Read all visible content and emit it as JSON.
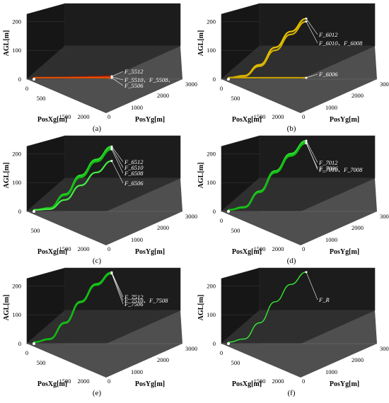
{
  "figure": {
    "panels": [
      {
        "id": "a",
        "caption": "(a)",
        "labels": [
          "F_5512",
          "F_5510、F_5508、",
          "F_5506"
        ]
      },
      {
        "id": "b",
        "caption": "(b)",
        "labels": [
          "F_6012",
          "F_6010、F_6008",
          "F_6006"
        ]
      },
      {
        "id": "c",
        "caption": "(c)",
        "labels": [
          "F_6512",
          "F_6510",
          "F_6508",
          "F_6506"
        ]
      },
      {
        "id": "d",
        "caption": "(d)",
        "labels": [
          "F_7012",
          "F_7010、F_7008",
          "F_7006"
        ]
      },
      {
        "id": "e",
        "caption": "(e)",
        "labels": [
          "F_7510、F_7508",
          "F_7512",
          "F_7506"
        ]
      },
      {
        "id": "f",
        "caption": "(f)",
        "labels": [
          "F_R"
        ]
      }
    ]
  },
  "chart_data": [
    {
      "type": "line",
      "panel": "a",
      "zlabel": "AGL[m]",
      "xlabel": "PosXg[m]",
      "ylabel": "PosYg[m]",
      "z_ticks": [
        "0",
        "100",
        "200"
      ],
      "x_ticks": [
        "0",
        "500",
        "1500",
        "2000"
      ],
      "y_ticks": [
        "0",
        "1000",
        "2000",
        "3000"
      ],
      "zlim": [
        0,
        250
      ],
      "xlim": [
        0,
        2000
      ],
      "ylim": [
        0,
        3000
      ],
      "colors": {
        "green": "#22cc22",
        "yellow": "#e8c000",
        "red": "#cc2200",
        "background": "#1a1a1a"
      },
      "series": [
        {
          "name": "F_5512",
          "x": [
            0,
            400,
            800,
            1200,
            1600,
            2000
          ],
          "y": [
            0,
            600,
            1200,
            1800,
            2400,
            3000
          ],
          "z": [
            5,
            5,
            6,
            7,
            8,
            10
          ]
        },
        {
          "name": "F_5510、F_5508、",
          "x": [
            0,
            400,
            800,
            1200,
            1600,
            2000
          ],
          "y": [
            0,
            600,
            1200,
            1800,
            2400,
            3000
          ],
          "z": [
            5,
            5,
            5,
            6,
            7,
            8
          ]
        },
        {
          "name": "F_5506",
          "x": [
            0,
            400,
            800,
            1200,
            1600,
            2000
          ],
          "y": [
            0,
            600,
            1200,
            1800,
            2400,
            3000
          ],
          "z": [
            5,
            5,
            5,
            5,
            5,
            5
          ]
        }
      ]
    },
    {
      "type": "line",
      "panel": "b",
      "zlabel": "AGL[m]",
      "xlabel": "PosXg[m]",
      "ylabel": "PosYg[m]",
      "z_ticks": [
        "0",
        "100",
        "200"
      ],
      "x_ticks": [
        "0",
        "500",
        "1500",
        "2000"
      ],
      "y_ticks": [
        "0",
        "1000",
        "2000",
        "3000"
      ],
      "zlim": [
        0,
        250
      ],
      "xlim": [
        0,
        2000
      ],
      "ylim": [
        0,
        3000
      ],
      "series": [
        {
          "name": "F_6012",
          "x": [
            0,
            400,
            800,
            1200,
            1600,
            2000
          ],
          "y": [
            0,
            600,
            1200,
            1800,
            2400,
            3000
          ],
          "z": [
            5,
            12,
            50,
            110,
            165,
            210
          ]
        },
        {
          "name": "F_6010、F_6008",
          "x": [
            0,
            400,
            800,
            1200,
            1600,
            2000
          ],
          "y": [
            0,
            600,
            1200,
            1800,
            2400,
            3000
          ],
          "z": [
            5,
            10,
            45,
            100,
            155,
            200
          ]
        },
        {
          "name": "F_6006",
          "x": [
            0,
            400,
            800,
            1200,
            1600,
            2000
          ],
          "y": [
            0,
            600,
            1200,
            1800,
            2400,
            3000
          ],
          "z": [
            5,
            5,
            5,
            5,
            5,
            5
          ]
        }
      ]
    },
    {
      "type": "line",
      "panel": "c",
      "zlabel": "AGL[m]",
      "xlabel": "PosXg[m]",
      "ylabel": "PosYg[m]",
      "z_ticks": [
        "0",
        "100",
        "200"
      ],
      "x_ticks": [
        "500",
        "1500",
        "2000"
      ],
      "y_ticks": [
        "0",
        "1000",
        "2000",
        "3000"
      ],
      "zlim": [
        0,
        250
      ],
      "xlim": [
        0,
        2000
      ],
      "ylim": [
        0,
        3000
      ],
      "series": [
        {
          "name": "F_6512",
          "x": [
            0,
            400,
            800,
            1200,
            1600,
            2000
          ],
          "y": [
            0,
            600,
            1200,
            1800,
            2400,
            3000
          ],
          "z": [
            5,
            12,
            60,
            125,
            180,
            225
          ]
        },
        {
          "name": "F_6510",
          "x": [
            0,
            400,
            800,
            1200,
            1600,
            2000
          ],
          "y": [
            0,
            600,
            1200,
            1800,
            2400,
            3000
          ],
          "z": [
            5,
            12,
            58,
            122,
            176,
            220
          ]
        },
        {
          "name": "F_6508",
          "x": [
            0,
            400,
            800,
            1200,
            1600,
            2000
          ],
          "y": [
            0,
            600,
            1200,
            1800,
            2400,
            3000
          ],
          "z": [
            5,
            11,
            56,
            118,
            172,
            215
          ]
        },
        {
          "name": "F_6506",
          "x": [
            0,
            400,
            800,
            1200,
            1600,
            2000
          ],
          "y": [
            0,
            600,
            1200,
            1800,
            2400,
            3000
          ],
          "z": [
            5,
            8,
            40,
            90,
            135,
            175
          ]
        }
      ]
    },
    {
      "type": "line",
      "panel": "d",
      "zlabel": "AGL[m]",
      "xlabel": "PosXg[m]",
      "ylabel": "PosYg[m]",
      "z_ticks": [
        "0",
        "100",
        "200"
      ],
      "x_ticks": [
        "0",
        "500",
        "1500",
        "2000"
      ],
      "y_ticks": [
        "0",
        "1000",
        "2000",
        "3000"
      ],
      "zlim": [
        0,
        250
      ],
      "xlim": [
        0,
        2000
      ],
      "ylim": [
        0,
        3000
      ],
      "series": [
        {
          "name": "F_7012",
          "x": [
            0,
            400,
            800,
            1200,
            1600,
            2000
          ],
          "y": [
            0,
            600,
            1200,
            1800,
            2400,
            3000
          ],
          "z": [
            5,
            15,
            70,
            140,
            200,
            245
          ]
        },
        {
          "name": "F_7010、F_7008",
          "x": [
            0,
            400,
            800,
            1200,
            1600,
            2000
          ],
          "y": [
            0,
            600,
            1200,
            1800,
            2400,
            3000
          ],
          "z": [
            5,
            14,
            68,
            137,
            196,
            240
          ]
        },
        {
          "name": "F_7006",
          "x": [
            0,
            400,
            800,
            1200,
            1600,
            2000
          ],
          "y": [
            0,
            600,
            1200,
            1800,
            2400,
            3000
          ],
          "z": [
            5,
            13,
            66,
            134,
            192,
            236
          ]
        }
      ]
    },
    {
      "type": "line",
      "panel": "e",
      "zlabel": "AGL[m]",
      "xlabel": "PosXg[m]",
      "ylabel": "PosYg[m]",
      "z_ticks": [
        "0",
        "100",
        "200"
      ],
      "x_ticks": [
        "0",
        "500",
        "1500",
        "2000"
      ],
      "y_ticks": [
        "0",
        "1000",
        "2000",
        "3000"
      ],
      "zlim": [
        0,
        250
      ],
      "xlim": [
        0,
        2000
      ],
      "ylim": [
        0,
        3000
      ],
      "series": [
        {
          "name": "F_7510、F_7508",
          "x": [
            0,
            400,
            800,
            1200,
            1600,
            2000
          ],
          "y": [
            0,
            600,
            1200,
            1800,
            2400,
            3000
          ],
          "z": [
            5,
            16,
            72,
            145,
            205,
            245
          ]
        },
        {
          "name": "F_7512",
          "x": [
            0,
            400,
            800,
            1200,
            1600,
            2000
          ],
          "y": [
            0,
            600,
            1200,
            1800,
            2400,
            3000
          ],
          "z": [
            5,
            16,
            73,
            146,
            207,
            247
          ]
        },
        {
          "name": "F_7506",
          "x": [
            0,
            400,
            800,
            1200,
            1600,
            2000
          ],
          "y": [
            0,
            600,
            1200,
            1800,
            2400,
            3000
          ],
          "z": [
            5,
            15,
            71,
            143,
            203,
            243
          ]
        }
      ]
    },
    {
      "type": "line",
      "panel": "f",
      "zlabel": "AGL[m]",
      "xlabel": "PosXg[m]",
      "ylabel": "PosYg[m]",
      "z_ticks": [
        "0",
        "100",
        "200"
      ],
      "x_ticks": [
        "0",
        "500",
        "1500",
        "2000"
      ],
      "y_ticks": [
        "0",
        "1000",
        "2000",
        "3000"
      ],
      "zlim": [
        0,
        250
      ],
      "xlim": [
        0,
        2000
      ],
      "ylim": [
        0,
        3000
      ],
      "series": [
        {
          "name": "F_R",
          "x": [
            0,
            400,
            800,
            1200,
            1600,
            2000
          ],
          "y": [
            0,
            600,
            1200,
            1800,
            2400,
            3000
          ],
          "z": [
            5,
            16,
            72,
            145,
            205,
            248
          ]
        }
      ]
    }
  ]
}
